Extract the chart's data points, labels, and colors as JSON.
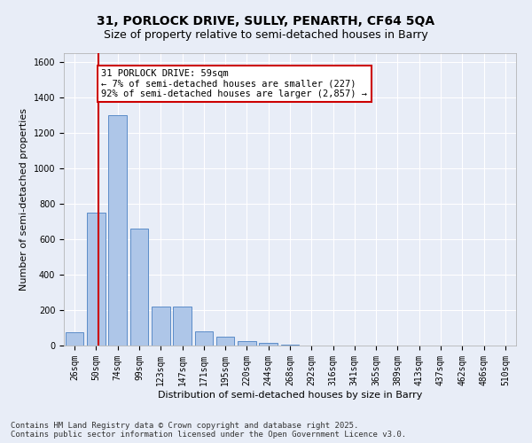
{
  "title_line1": "31, PORLOCK DRIVE, SULLY, PENARTH, CF64 5QA",
  "title_line2": "Size of property relative to semi-detached houses in Barry",
  "xlabel": "Distribution of semi-detached houses by size in Barry",
  "ylabel": "Number of semi-detached properties",
  "categories": [
    "26sqm",
    "50sqm",
    "74sqm",
    "99sqm",
    "123sqm",
    "147sqm",
    "171sqm",
    "195sqm",
    "220sqm",
    "244sqm",
    "268sqm",
    "292sqm",
    "316sqm",
    "341sqm",
    "365sqm",
    "389sqm",
    "413sqm",
    "437sqm",
    "462sqm",
    "486sqm",
    "510sqm"
  ],
  "bar_values": [
    75,
    750,
    1300,
    660,
    220,
    220,
    80,
    50,
    25,
    15,
    5,
    0,
    0,
    0,
    0,
    0,
    0,
    0,
    0,
    0,
    0
  ],
  "bar_color": "#aec6e8",
  "bar_edge_color": "#5b8cc8",
  "bg_color": "#e8edf7",
  "grid_color": "#ffffff",
  "annotation_text": "31 PORLOCK DRIVE: 59sqm\n← 7% of semi-detached houses are smaller (227)\n92% of semi-detached houses are larger (2,857) →",
  "vline_color": "#cc0000",
  "annotation_box_color": "#ffffff",
  "annotation_box_edge": "#cc0000",
  "footer_line1": "Contains HM Land Registry data © Crown copyright and database right 2025.",
  "footer_line2": "Contains public sector information licensed under the Open Government Licence v3.0.",
  "ylim": [
    0,
    1650
  ],
  "yticks": [
    0,
    200,
    400,
    600,
    800,
    1000,
    1200,
    1400,
    1600
  ],
  "title_fontsize": 10,
  "subtitle_fontsize": 9,
  "axis_label_fontsize": 8,
  "tick_fontsize": 7,
  "footer_fontsize": 6.5,
  "annot_fontsize": 7.5
}
